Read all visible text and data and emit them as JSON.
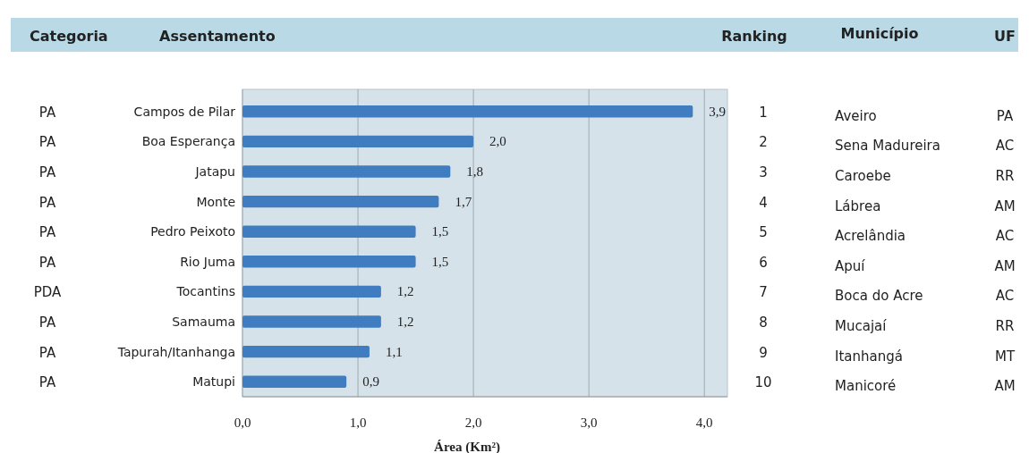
{
  "chart_data": {
    "type": "bar",
    "orientation": "horizontal",
    "ylabel": "Assentamento",
    "xlabel": "Área (Km²)",
    "categories": [
      "Campos de Pilar",
      "Boa Esperança",
      "Jatapu",
      "Monte",
      "Pedro Peixoto",
      "Rio Juma",
      "Tocantins",
      "Samauma",
      "Tapurah/Itanhanga",
      "Matupi"
    ],
    "values": [
      3.9,
      2.0,
      1.8,
      1.7,
      1.5,
      1.5,
      1.2,
      1.2,
      1.1,
      0.9
    ],
    "value_labels": [
      "3,9",
      "2,0",
      "1,8",
      "1,7",
      "1,5",
      "1,5",
      "1,2",
      "1,2",
      "1,1",
      "0,9"
    ],
    "color": "#3f7cc0",
    "xlim": [
      0,
      4.2
    ],
    "xticks": [
      {
        "value": 0,
        "label": "0,0"
      },
      {
        "value": 1,
        "label": "1,0"
      },
      {
        "value": 2,
        "label": "2,0"
      },
      {
        "value": 3,
        "label": "3,0"
      },
      {
        "value": 4,
        "label": "4,0"
      }
    ],
    "grid": "x",
    "annotations": [
      "Categoria",
      "Ranking",
      "Município",
      "UF",
      "PA",
      "1",
      "Aveiro",
      "PA",
      "PA",
      "2",
      "Sena Madureira",
      "AC",
      "PA",
      "3",
      "Caroebe",
      "RR",
      "PA",
      "4",
      "Lábrea",
      "AM",
      "PA",
      "5",
      "Acrelândia",
      "AC",
      "PA",
      "6",
      "Apuí",
      "AM",
      "PDA",
      "7",
      "Boca do Acre",
      "AC",
      "PA",
      "8",
      "Mucajaí",
      "RR",
      "PA",
      "9",
      "Itanhangá",
      "MT",
      "PA",
      "10",
      "Manicoré",
      "AM"
    ]
  }
}
